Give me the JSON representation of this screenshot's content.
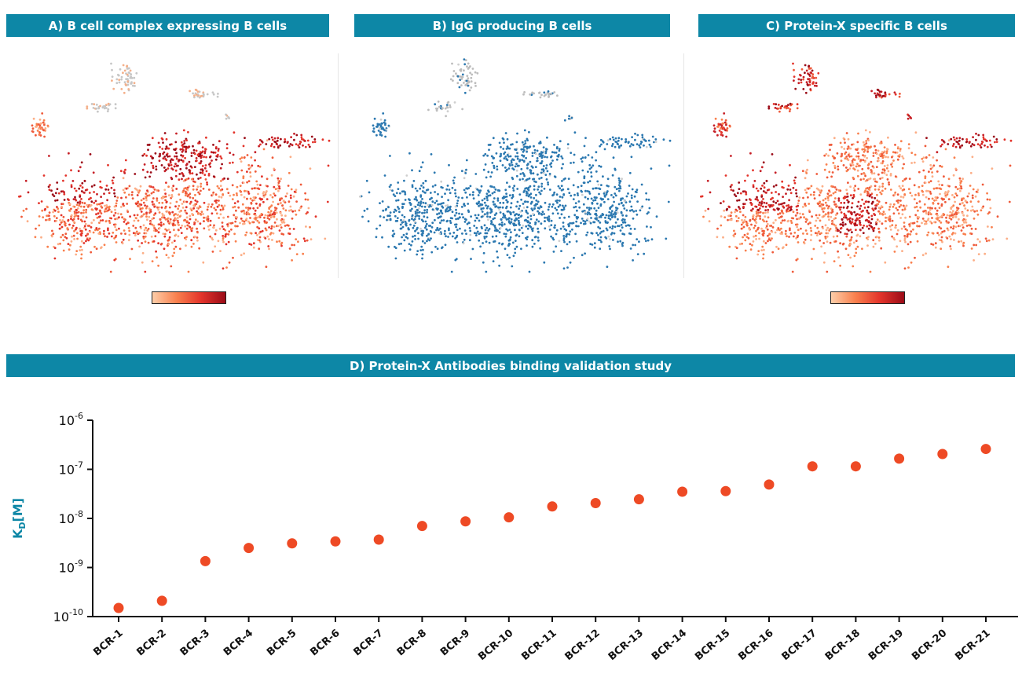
{
  "panels": {
    "a": {
      "title": "A) B cell complex expressing B cells"
    },
    "b": {
      "title": "B) IgG producing B cells"
    },
    "c": {
      "title": "C) Protein-X specific B cells"
    },
    "d": {
      "title": "D) Protein-X Antibodies binding validation study"
    }
  },
  "colors": {
    "banner": "#0d87a6",
    "ylabel": "#0d87a6",
    "marker": "#ee4a25",
    "tsne_blue": "#2b78b0",
    "tsne_grey": "#bdbdbd"
  },
  "chart_data": [
    {
      "type": "scatter",
      "panel": "A",
      "title": "A) B cell complex expressing B cells",
      "xlabel": "",
      "ylabel": "",
      "colormap": "reds",
      "colorbar": true
    },
    {
      "type": "scatter",
      "panel": "B",
      "title": "B) IgG producing B cells",
      "xlabel": "",
      "ylabel": "",
      "colors": [
        "blue",
        "grey"
      ],
      "colorbar": false
    },
    {
      "type": "scatter",
      "panel": "C",
      "title": "C) Protein-X specific B cells",
      "xlabel": "",
      "ylabel": "",
      "colormap": "reds",
      "colorbar": true
    },
    {
      "type": "scatter",
      "panel": "D",
      "title": "D) Protein-X Antibodies binding validation study",
      "xlabel": "",
      "ylabel": "KD[M]",
      "ylabel_main": "K",
      "ylabel_sub": "D",
      "ylabel_tail": "[M]",
      "yscale": "log",
      "ylim": [
        1e-10,
        1e-06
      ],
      "yticks": [
        {
          "value": 1e-10,
          "base": "10",
          "exp": "-10"
        },
        {
          "value": 1e-09,
          "base": "10",
          "exp": "-9"
        },
        {
          "value": 1e-08,
          "base": "10",
          "exp": "-8"
        },
        {
          "value": 1e-07,
          "base": "10",
          "exp": "-7"
        },
        {
          "value": 1e-06,
          "base": "10",
          "exp": "-6"
        }
      ],
      "categories": [
        "BCR-1",
        "BCR-2",
        "BCR-3",
        "BCR-4",
        "BCR-5",
        "BCR-6",
        "BCR-7",
        "BCR-8",
        "BCR-9",
        "BCR-10",
        "BCR-11",
        "BCR-12",
        "BCR-13",
        "BCR-14",
        "BCR-15",
        "BCR-16",
        "BCR-17",
        "BCR-18",
        "BCR-19",
        "BCR-20",
        "BCR-21"
      ],
      "values": [
        1.5e-10,
        2.1e-10,
        1.35e-09,
        2.5e-09,
        3.1e-09,
        3.4e-09,
        3.7e-09,
        7e-09,
        8.7e-09,
        1.05e-08,
        1.75e-08,
        2.05e-08,
        2.45e-08,
        3.5e-08,
        3.6e-08,
        4.9e-08,
        1.15e-07,
        1.15e-07,
        1.65e-07,
        2.05e-07,
        2.6e-07
      ],
      "grid": false
    }
  ]
}
